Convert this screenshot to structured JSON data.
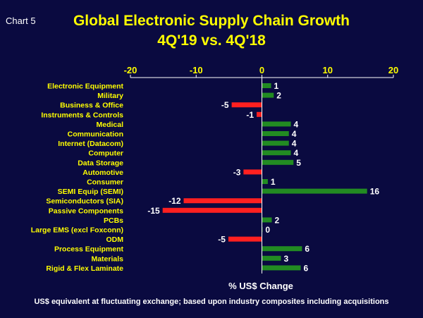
{
  "chart_label": "Chart 5",
  "footnote": "US$ equivalent at fluctuating exchange; based upon industry composites  including acquisitions",
  "colors": {
    "background": "#0a0a40",
    "positive": "#228b22",
    "negative": "#ff2020",
    "title": "#ffff00",
    "axis_text": "#ffff00",
    "value_text": "#ffffff"
  },
  "chart_data": {
    "type": "bar",
    "orientation": "horizontal",
    "title": "Global Electronic Supply Chain Growth",
    "subtitle": "4Q'19 vs. 4Q'18",
    "xlabel": "% US$ Change",
    "ylabel": "",
    "xlim": [
      -20,
      20
    ],
    "xticks": [
      -20,
      -10,
      0,
      10,
      20
    ],
    "grid": false,
    "categories": [
      "Electronic Equipment",
      "Military",
      "Business & Office",
      "Instruments & Controls",
      "Medical",
      "Communication",
      "Internet (Datacom)",
      "Computer",
      "Data Storage",
      "Automotive",
      "Consumer",
      "SEMI Equip (SEMI)",
      "Semiconductors (SIA)",
      "Passive Components",
      "PCBs",
      "Large EMS (excl Foxconn)",
      "ODM ",
      "Process Equipment",
      "Materials",
      "Rigid & Flex Laminate"
    ],
    "values": [
      1.4,
      1.8,
      -4.6,
      -0.8,
      4.4,
      4.1,
      4.1,
      4.4,
      4.8,
      -2.8,
      0.9,
      16.0,
      -11.9,
      -15.1,
      1.5,
      0.1,
      -5.1,
      6.1,
      2.9,
      5.9
    ],
    "data_labels": [
      "1",
      "2",
      "-5",
      "-1",
      "4",
      "4",
      "4",
      "4",
      "5",
      "-3",
      "1",
      "16",
      "-12",
      "-15",
      "2",
      "0",
      "-5",
      "6",
      "3",
      "6"
    ]
  }
}
